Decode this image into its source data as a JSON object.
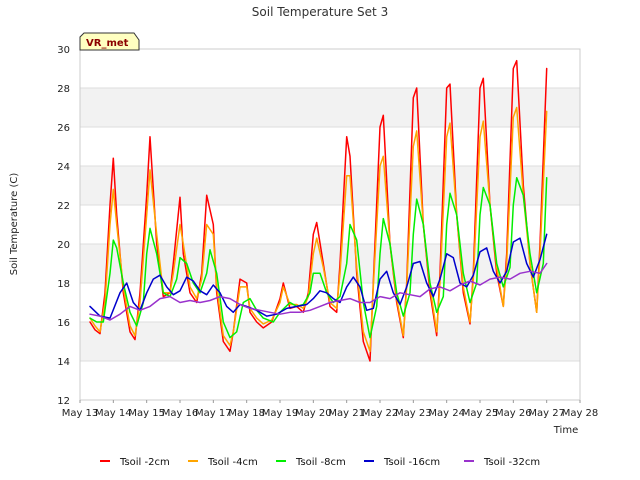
{
  "chart_data": {
    "type": "line",
    "title": "Soil Temperature Set 3",
    "xlabel": "Time",
    "ylabel": "Soil Temperature (C)",
    "badge": "VR_met",
    "ylim": [
      12,
      30
    ],
    "yticks": [
      "12",
      "14",
      "16",
      "18",
      "20",
      "22",
      "24",
      "26",
      "28",
      "30"
    ],
    "xlim": [
      13,
      28
    ],
    "xticks": [
      "May 13",
      "May 14",
      "May 15",
      "May 16",
      "May 17",
      "May 18",
      "May 19",
      "May 20",
      "May 21",
      "May 22",
      "May 23",
      "May 24",
      "May 25",
      "May 26",
      "May 27",
      "May 28"
    ],
    "grid": "horizontal bands",
    "legend": "bottom",
    "series": [
      {
        "name": "Tsoil -2cm",
        "color": "#ff0000",
        "x": [
          13.3,
          13.45,
          13.6,
          13.75,
          13.9,
          14.0,
          14.1,
          14.3,
          14.5,
          14.65,
          14.8,
          15.0,
          15.1,
          15.3,
          15.5,
          15.7,
          15.8,
          16.0,
          16.1,
          16.3,
          16.5,
          16.65,
          16.8,
          17.0,
          17.1,
          17.3,
          17.5,
          17.6,
          17.8,
          18.0,
          18.1,
          18.3,
          18.5,
          18.75,
          19.0,
          19.1,
          19.3,
          19.5,
          19.7,
          19.85,
          20.0,
          20.1,
          20.3,
          20.5,
          20.7,
          20.8,
          21.0,
          21.1,
          21.3,
          21.5,
          21.7,
          21.8,
          22.0,
          22.1,
          22.3,
          22.5,
          22.7,
          22.8,
          23.0,
          23.1,
          23.3,
          23.5,
          23.7,
          23.8,
          24.0,
          24.1,
          24.3,
          24.5,
          24.7,
          24.8,
          25.0,
          25.1,
          25.3,
          25.5,
          25.7,
          25.8,
          26.0,
          26.1,
          26.3,
          26.5,
          26.7,
          26.8,
          27.0
        ],
        "y": [
          16.0,
          15.6,
          15.4,
          17.5,
          22.0,
          24.4,
          21.5,
          17.5,
          15.5,
          15.1,
          17.5,
          22.5,
          25.5,
          20.0,
          17.3,
          17.5,
          19.0,
          22.4,
          19.5,
          17.5,
          17.0,
          18.5,
          22.5,
          21.0,
          17.5,
          15.0,
          14.5,
          15.5,
          18.2,
          18.0,
          16.5,
          16.0,
          15.7,
          16.0,
          17.2,
          18.0,
          16.7,
          16.8,
          16.5,
          17.5,
          20.5,
          21.1,
          19.0,
          16.8,
          16.5,
          19.0,
          25.5,
          24.5,
          18.5,
          15.0,
          14.0,
          18.0,
          26.0,
          26.6,
          20.0,
          17.0,
          15.2,
          18.0,
          27.5,
          28.0,
          21.0,
          17.5,
          15.3,
          18.5,
          28.0,
          28.2,
          21.5,
          17.5,
          15.9,
          18.5,
          28.0,
          28.5,
          22.0,
          18.5,
          16.8,
          19.5,
          29.0,
          29.4,
          23.0,
          19.0,
          16.5,
          20.0,
          29.0
        ]
      },
      {
        "name": "Tsoil -4cm",
        "color": "#ffa500",
        "x": [
          13.3,
          13.45,
          13.6,
          13.75,
          13.9,
          14.0,
          14.1,
          14.3,
          14.5,
          14.65,
          14.8,
          15.0,
          15.1,
          15.3,
          15.5,
          15.7,
          15.8,
          16.0,
          16.1,
          16.3,
          16.5,
          16.65,
          16.8,
          17.0,
          17.1,
          17.3,
          17.5,
          17.6,
          17.8,
          18.0,
          18.1,
          18.3,
          18.5,
          18.75,
          19.0,
          19.1,
          19.3,
          19.5,
          19.7,
          19.85,
          20.0,
          20.1,
          20.3,
          20.5,
          20.7,
          20.8,
          21.0,
          21.1,
          21.3,
          21.5,
          21.7,
          21.8,
          22.0,
          22.1,
          22.3,
          22.5,
          22.7,
          22.8,
          23.0,
          23.1,
          23.3,
          23.5,
          23.7,
          23.8,
          24.0,
          24.1,
          24.3,
          24.5,
          24.7,
          24.8,
          25.0,
          25.1,
          25.3,
          25.5,
          25.7,
          25.8,
          26.0,
          26.1,
          26.3,
          26.5,
          26.7,
          26.8,
          27.0
        ],
        "y": [
          16.2,
          15.8,
          15.5,
          17.0,
          21.0,
          22.8,
          21.0,
          17.8,
          15.8,
          15.3,
          17.0,
          21.5,
          23.8,
          20.5,
          17.5,
          17.5,
          18.5,
          21.0,
          20.0,
          17.8,
          17.2,
          18.2,
          21.0,
          20.5,
          17.8,
          15.3,
          14.8,
          15.5,
          17.8,
          17.8,
          16.7,
          16.2,
          15.9,
          16.1,
          17.0,
          17.8,
          16.9,
          16.9,
          16.7,
          17.3,
          19.5,
          20.3,
          18.8,
          17.0,
          16.7,
          18.5,
          23.5,
          23.5,
          18.8,
          15.5,
          14.5,
          17.8,
          24.0,
          24.5,
          20.0,
          17.2,
          15.3,
          17.8,
          25.0,
          25.8,
          21.0,
          17.8,
          15.5,
          18.0,
          25.5,
          26.2,
          21.5,
          17.8,
          16.0,
          18.2,
          25.5,
          26.3,
          22.0,
          18.8,
          16.8,
          19.0,
          26.5,
          27.0,
          22.5,
          19.0,
          16.5,
          19.5,
          26.8
        ]
      },
      {
        "name": "Tsoil -8cm",
        "color": "#00ee00",
        "x": [
          13.3,
          13.5,
          13.7,
          13.9,
          14.0,
          14.1,
          14.3,
          14.5,
          14.7,
          14.9,
          15.0,
          15.1,
          15.3,
          15.5,
          15.7,
          15.9,
          16.0,
          16.2,
          16.4,
          16.6,
          16.8,
          16.9,
          17.1,
          17.3,
          17.5,
          17.7,
          17.9,
          18.1,
          18.3,
          18.5,
          18.8,
          19.0,
          19.3,
          19.5,
          19.7,
          19.9,
          20.0,
          20.2,
          20.4,
          20.6,
          20.8,
          21.0,
          21.1,
          21.3,
          21.5,
          21.7,
          21.9,
          22.0,
          22.1,
          22.3,
          22.5,
          22.7,
          22.9,
          23.0,
          23.1,
          23.3,
          23.5,
          23.7,
          23.9,
          24.0,
          24.1,
          24.3,
          24.5,
          24.7,
          24.9,
          25.0,
          25.1,
          25.3,
          25.5,
          25.7,
          25.9,
          26.0,
          26.1,
          26.3,
          26.5,
          26.7,
          26.9,
          27.0
        ],
        "y": [
          16.2,
          16.0,
          16.0,
          18.5,
          20.2,
          19.8,
          18.0,
          16.5,
          15.8,
          17.0,
          19.5,
          20.8,
          19.5,
          17.5,
          17.3,
          18.2,
          19.3,
          19.0,
          18.0,
          17.5,
          18.5,
          19.7,
          18.5,
          16.0,
          15.2,
          15.5,
          17.0,
          17.2,
          16.6,
          16.2,
          16.0,
          16.5,
          17.0,
          16.8,
          16.9,
          17.5,
          18.5,
          18.5,
          17.5,
          17.0,
          17.3,
          19.0,
          21.0,
          20.2,
          17.0,
          15.2,
          16.8,
          19.5,
          21.3,
          20.0,
          17.5,
          16.3,
          17.5,
          20.5,
          22.3,
          21.0,
          18.0,
          16.5,
          17.3,
          21.0,
          22.6,
          21.5,
          18.5,
          17.0,
          18.0,
          21.5,
          22.9,
          22.0,
          19.0,
          17.8,
          18.8,
          22.0,
          23.4,
          22.5,
          19.5,
          17.5,
          19.0,
          23.4
        ]
      },
      {
        "name": "Tsoil -16cm",
        "color": "#0000cc",
        "x": [
          13.3,
          13.6,
          13.9,
          14.2,
          14.4,
          14.6,
          14.8,
          15.0,
          15.2,
          15.4,
          15.6,
          15.8,
          16.0,
          16.2,
          16.4,
          16.6,
          16.8,
          17.0,
          17.2,
          17.4,
          17.6,
          17.8,
          18.0,
          18.3,
          18.6,
          18.9,
          19.2,
          19.5,
          19.8,
          20.0,
          20.2,
          20.4,
          20.6,
          20.8,
          21.0,
          21.2,
          21.4,
          21.6,
          21.8,
          22.0,
          22.2,
          22.4,
          22.6,
          22.8,
          23.0,
          23.2,
          23.4,
          23.6,
          23.8,
          24.0,
          24.2,
          24.4,
          24.6,
          24.8,
          25.0,
          25.2,
          25.4,
          25.6,
          25.8,
          26.0,
          26.2,
          26.4,
          26.6,
          26.8,
          27.0
        ],
        "y": [
          16.8,
          16.3,
          16.2,
          17.5,
          18.0,
          17.0,
          16.6,
          17.5,
          18.2,
          18.4,
          17.8,
          17.4,
          17.6,
          18.3,
          18.1,
          17.6,
          17.4,
          17.9,
          17.5,
          16.8,
          16.5,
          16.9,
          16.8,
          16.6,
          16.3,
          16.4,
          16.7,
          16.8,
          16.9,
          17.2,
          17.6,
          17.5,
          17.2,
          17.0,
          17.8,
          18.3,
          17.8,
          16.6,
          16.7,
          18.2,
          18.6,
          17.5,
          16.9,
          17.8,
          19.0,
          19.1,
          18.0,
          17.3,
          18.2,
          19.5,
          19.3,
          18.0,
          17.8,
          18.4,
          19.6,
          19.8,
          18.6,
          18.0,
          18.6,
          20.1,
          20.3,
          19.0,
          18.3,
          19.2,
          20.5
        ]
      },
      {
        "name": "Tsoil -32cm",
        "color": "#9932cc",
        "x": [
          13.3,
          13.6,
          13.9,
          14.2,
          14.5,
          14.8,
          15.1,
          15.4,
          15.7,
          16.0,
          16.3,
          16.6,
          16.9,
          17.2,
          17.5,
          17.8,
          18.1,
          18.4,
          18.7,
          19.0,
          19.3,
          19.6,
          19.9,
          20.2,
          20.5,
          20.8,
          21.1,
          21.4,
          21.7,
          22.0,
          22.3,
          22.6,
          22.9,
          23.2,
          23.5,
          23.8,
          24.1,
          24.4,
          24.7,
          25.0,
          25.3,
          25.6,
          25.9,
          26.2,
          26.5,
          26.8,
          27.0
        ],
        "y": [
          16.4,
          16.3,
          16.1,
          16.4,
          16.8,
          16.6,
          16.8,
          17.2,
          17.3,
          17.0,
          17.1,
          17.0,
          17.1,
          17.3,
          17.2,
          16.9,
          16.7,
          16.6,
          16.5,
          16.4,
          16.5,
          16.5,
          16.6,
          16.8,
          17.0,
          17.1,
          17.2,
          17.0,
          17.0,
          17.3,
          17.2,
          17.5,
          17.4,
          17.3,
          17.7,
          17.8,
          17.6,
          17.9,
          18.1,
          17.9,
          18.2,
          18.3,
          18.2,
          18.5,
          18.6,
          18.5,
          19.0
        ]
      }
    ]
  }
}
